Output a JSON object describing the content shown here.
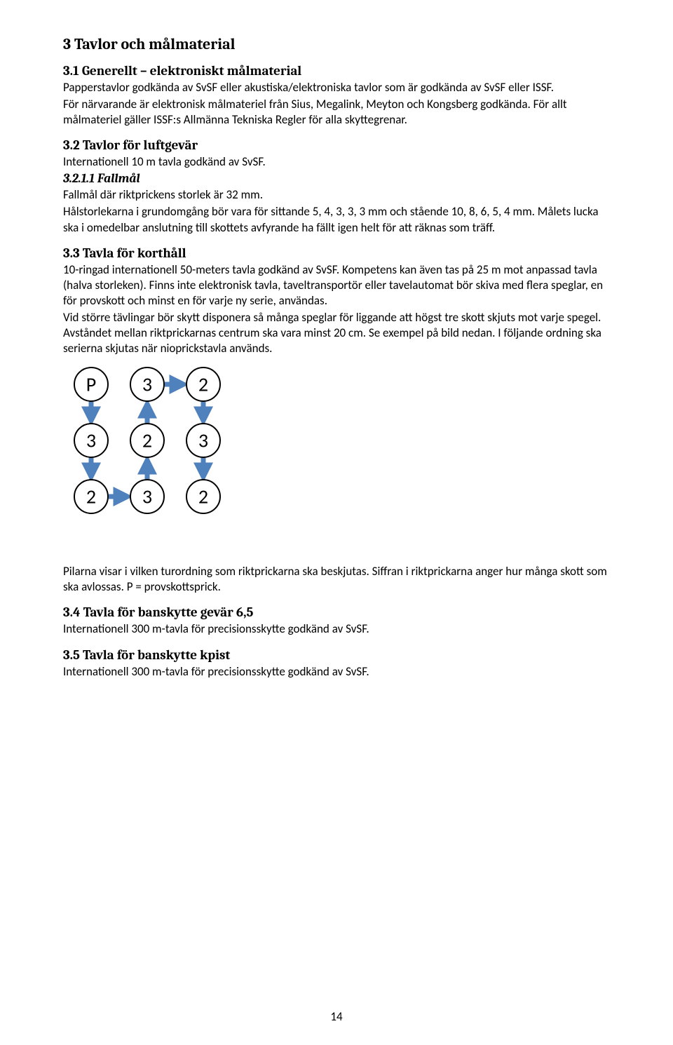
{
  "headings": {
    "h1": "3   Tavlor och målmaterial",
    "h2_31": "3.1   Generellt – elektroniskt målmaterial",
    "h2_32": "3.2   Tavlor för luftgevär",
    "h3_3211": "3.2.1.1   Fallmål",
    "h2_33": "3.3   Tavla för korthåll",
    "h2_34": "3.4   Tavla för banskytte gevär 6,5",
    "h2_35": "3.5   Tavla för banskytte kpist"
  },
  "paragraphs": {
    "p31": "Papperstavlor godkända av SvSF eller akustiska/elektroniska tavlor som är godkända av SvSF eller ISSF.",
    "p31b": "För närvarande är elektronisk målmateriel från Sius, Megalink, Meyton och Kongsberg godkända. För allt målmateriel gäller ISSF:s Allmänna Tekniska Regler för alla skyttegrenar.",
    "p32": "Internationell 10 m tavla godkänd av SvSF.",
    "p3211a": "Fallmål där riktprickens storlek är 32 mm.",
    "p3211b": "Hålstorlekarna i grundomgång bör vara för sittande 5, 4, 3, 3, 3 mm och stående 10, 8, 6, 5, 4 mm. Målets lucka ska i omedelbar anslutning till skottets avfyrande ha fällt igen helt för att  räknas som träff.",
    "p33": "10-ringad internationell 50-meters tavla godkänd av SvSF. Kompetens kan även tas på 25 m mot anpassad tavla (halva storleken). Finns inte elektronisk tavla, taveltransportör eller tavelautomat bör skiva med flera speglar, en för provskott och minst en för varje ny serie, användas.",
    "p33b": "Vid större tävlingar bör skytt disponera så många speglar för liggande att högst tre skott skjuts mot varje spegel. Avståndet mellan riktprickarnas centrum ska vara minst 20 cm. Se exempel på bild nedan. I följande ordning ska serierna skjutas när nioprickstavla används.",
    "p33c": "Pilarna visar i vilken turordning som riktprickarna ska beskjutas. Siffran i riktprickarna anger hur många skott som ska avlossas. P = provskottsprick.",
    "p34": "Internationell 300 m-tavla för precisionsskytte godkänd av SvSF.",
    "p35": "Internationell 300 m-tavla för precisionsskytte godkänd av SvSF."
  },
  "diagram": {
    "grid": [
      [
        "P",
        "3",
        "2"
      ],
      [
        "3",
        "2",
        "3"
      ],
      [
        "2",
        "3",
        "2"
      ]
    ],
    "circle_stroke": "#000000",
    "circle_fill": "#ffffff",
    "circle_radius": 24,
    "stroke_width": 2,
    "cell_size": 80,
    "font_size": 28,
    "arrow_color": "#4f81bd",
    "arrow_stroke_width": 7,
    "arrows": [
      {
        "from": [
          0,
          0
        ],
        "to": [
          1,
          0
        ],
        "dir": "down"
      },
      {
        "from": [
          0,
          1
        ],
        "to": [
          0,
          2
        ],
        "dir": "right"
      },
      {
        "from": [
          1,
          0
        ],
        "to": [
          2,
          0
        ],
        "dir": "down"
      },
      {
        "from": [
          2,
          0
        ],
        "to": [
          2,
          1
        ],
        "dir": "right"
      },
      {
        "from": [
          2,
          1
        ],
        "to": [
          1,
          1
        ],
        "dir": "up"
      },
      {
        "from": [
          1,
          1
        ],
        "to": [
          0,
          1
        ],
        "dir": "up"
      },
      {
        "from": [
          0,
          2
        ],
        "to": [
          1,
          2
        ],
        "dir": "down"
      },
      {
        "from": [
          1,
          2
        ],
        "to": [
          2,
          2
        ],
        "dir": "down"
      }
    ]
  },
  "page_number": "14"
}
